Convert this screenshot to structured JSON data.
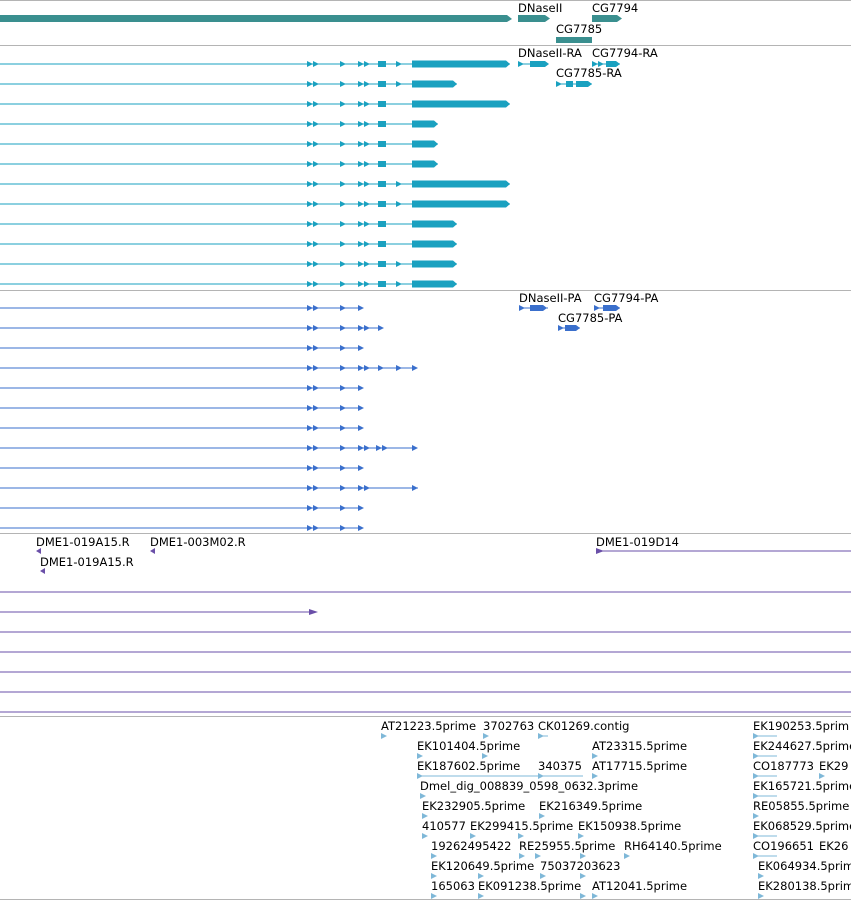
{
  "colors": {
    "gene": "#3a8f8f",
    "transcript": "#1aa1c0",
    "protein": "#3a6fcc",
    "clone": "#6a4fa8",
    "est": "#7fb8d8",
    "divider": "#b4b4b4"
  },
  "tracks": {
    "genes": {
      "labels": [
        "DNaseII",
        "CG7794",
        "CG7785"
      ]
    },
    "transcripts": {
      "labels": [
        "DNaseII-RA",
        "CG7794-RA",
        "CG7785-RA"
      ]
    },
    "proteins": {
      "labels": [
        "DNaseII-PA",
        "CG7794-PA",
        "CG7785-PA"
      ]
    },
    "clones": {
      "labels": [
        "DME1-019A15.R",
        "DME1-003M02.R",
        "DME1-019A15.R",
        "DME1-019D14"
      ]
    },
    "ests": {
      "labels": [
        "AT21223.5prime",
        "3702763",
        "CK01269.contig",
        "EK190253.5prim",
        "EK101404.5prime",
        "AT23315.5prime",
        "EK244627.5prime",
        "EK187602.5prime",
        "340375",
        "AT17715.5prime",
        "CO187773",
        "EK29",
        "Dmel_dig_008839_0598_0632.3prime",
        "EK165721.5prime",
        "EK232905.5prime",
        "EK216349.5prime",
        "RE05855.5prime",
        "410577",
        "EK299415.5prime",
        "EK150938.5prime",
        "EK068529.5prime",
        "19262495422",
        "RE25955.5prime",
        "RH64140.5prime",
        "CO196651",
        "EK26",
        "EK120649.5prime",
        "75037203623",
        "EK064934.5prime",
        "165063",
        "EK091238.5prime",
        "AT12041.5prime",
        "EK280138.5prime"
      ]
    }
  }
}
